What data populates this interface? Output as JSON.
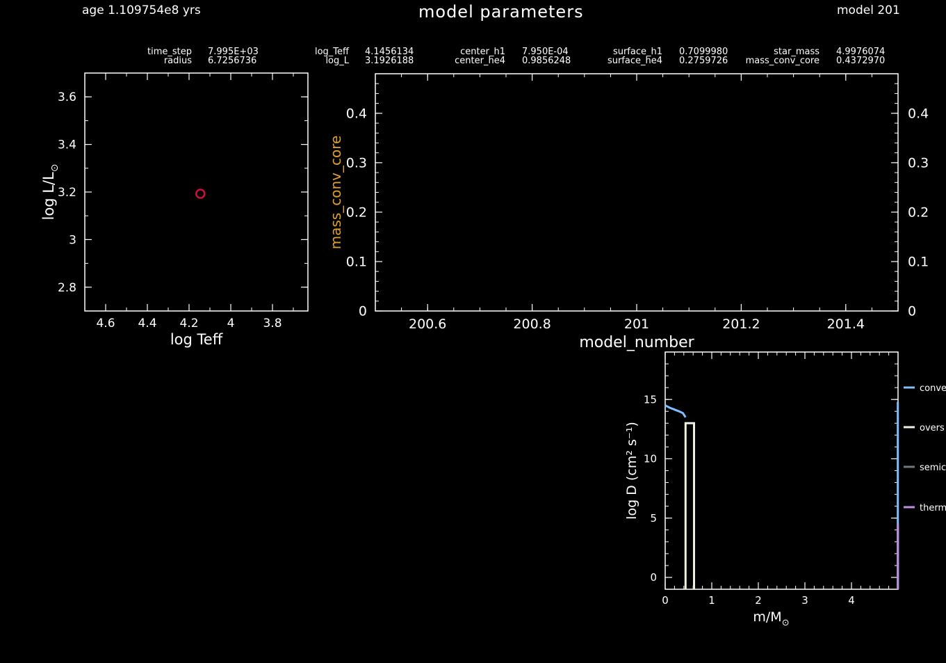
{
  "header": {
    "age": "age 1.109754e8 yrs",
    "title": "model parameters",
    "model": "model 201"
  },
  "params": [
    {
      "label": "time_step",
      "value": "7.995E+03"
    },
    {
      "label": "radius",
      "value": "6.7256736"
    },
    {
      "label": "log_Teff",
      "value": "4.1456134"
    },
    {
      "label": "log_L",
      "value": "3.1926188"
    },
    {
      "label": "center_h1",
      "value": "7.950E-04"
    },
    {
      "label": "center_he4",
      "value": "0.9856248"
    },
    {
      "label": "surface_h1",
      "value": "0.7099980"
    },
    {
      "label": "surface_he4",
      "value": "0.2759726"
    },
    {
      "label": "star_mass",
      "value": "4.9976074"
    },
    {
      "label": "mass_conv_core",
      "value": "0.4372970"
    }
  ],
  "chart_data": [
    {
      "type": "scatter",
      "name": "hr",
      "xlabel": "log Teff",
      "ylabel": "log L/L",
      "ylabel_sub": "⊙",
      "xlim": [
        4.7,
        3.63
      ],
      "ylim": [
        2.7,
        3.7
      ],
      "xticks": [
        "4.6",
        "4.4",
        "4.2",
        "4",
        "3.8"
      ],
      "yticks": [
        "3.6",
        "3.4",
        "3.2",
        "3",
        "2.8"
      ],
      "points": [
        {
          "x": 4.1456134,
          "y": 3.1926188
        }
      ],
      "marker_color": "#d0103a"
    },
    {
      "type": "line",
      "name": "history",
      "xlabel": "model_number",
      "ylabel": "mass_conv_core",
      "ylabel_color": "#e0a030",
      "xlim": [
        200.5,
        201.5
      ],
      "ylim": [
        0,
        0.48
      ],
      "xticks": [
        "200.6",
        "200.8",
        "201",
        "201.2",
        "201.4"
      ],
      "yticks": [
        "0.4",
        "0.3",
        "0.2",
        "0.1",
        "0"
      ],
      "series": []
    },
    {
      "type": "line",
      "name": "mixing",
      "xlabel": "m/M",
      "xlabel_sub": "⊙",
      "ylabel": "log D (cm² s⁻¹)",
      "xlim": [
        0,
        5.0
      ],
      "ylim": [
        -1,
        19
      ],
      "xticks": [
        "0",
        "1",
        "2",
        "3",
        "4"
      ],
      "yticks": [
        "15",
        "10",
        "5",
        "0"
      ],
      "legend": [
        {
          "label": "conve",
          "color": "#7fbfff"
        },
        {
          "label": "overs",
          "color": "#f0f0e0"
        },
        {
          "label": "semic",
          "color": "#707880"
        },
        {
          "label": "therm",
          "color": "#c090e0"
        }
      ],
      "series": [
        {
          "name": "conve",
          "color": "#7fbfff",
          "x": [
            0,
            0.1,
            0.2,
            0.3,
            0.38,
            0.437
          ],
          "y": [
            14.5,
            14.3,
            14.15,
            14.0,
            13.85,
            13.5
          ]
        },
        {
          "name": "overs",
          "color": "#f0f0e0",
          "x": [
            0.437,
            0.437,
            0.62,
            0.62
          ],
          "y": [
            -1,
            13.0,
            13.0,
            -1
          ]
        },
        {
          "name": "conve_surface",
          "color": "#7fbfff",
          "x": [
            4.995,
            4.995
          ],
          "y": [
            -1,
            14.8
          ]
        },
        {
          "name": "therm",
          "color": "#c090e0",
          "x": [
            4.997,
            4.997
          ],
          "y": [
            -1,
            4.5
          ]
        }
      ]
    }
  ]
}
